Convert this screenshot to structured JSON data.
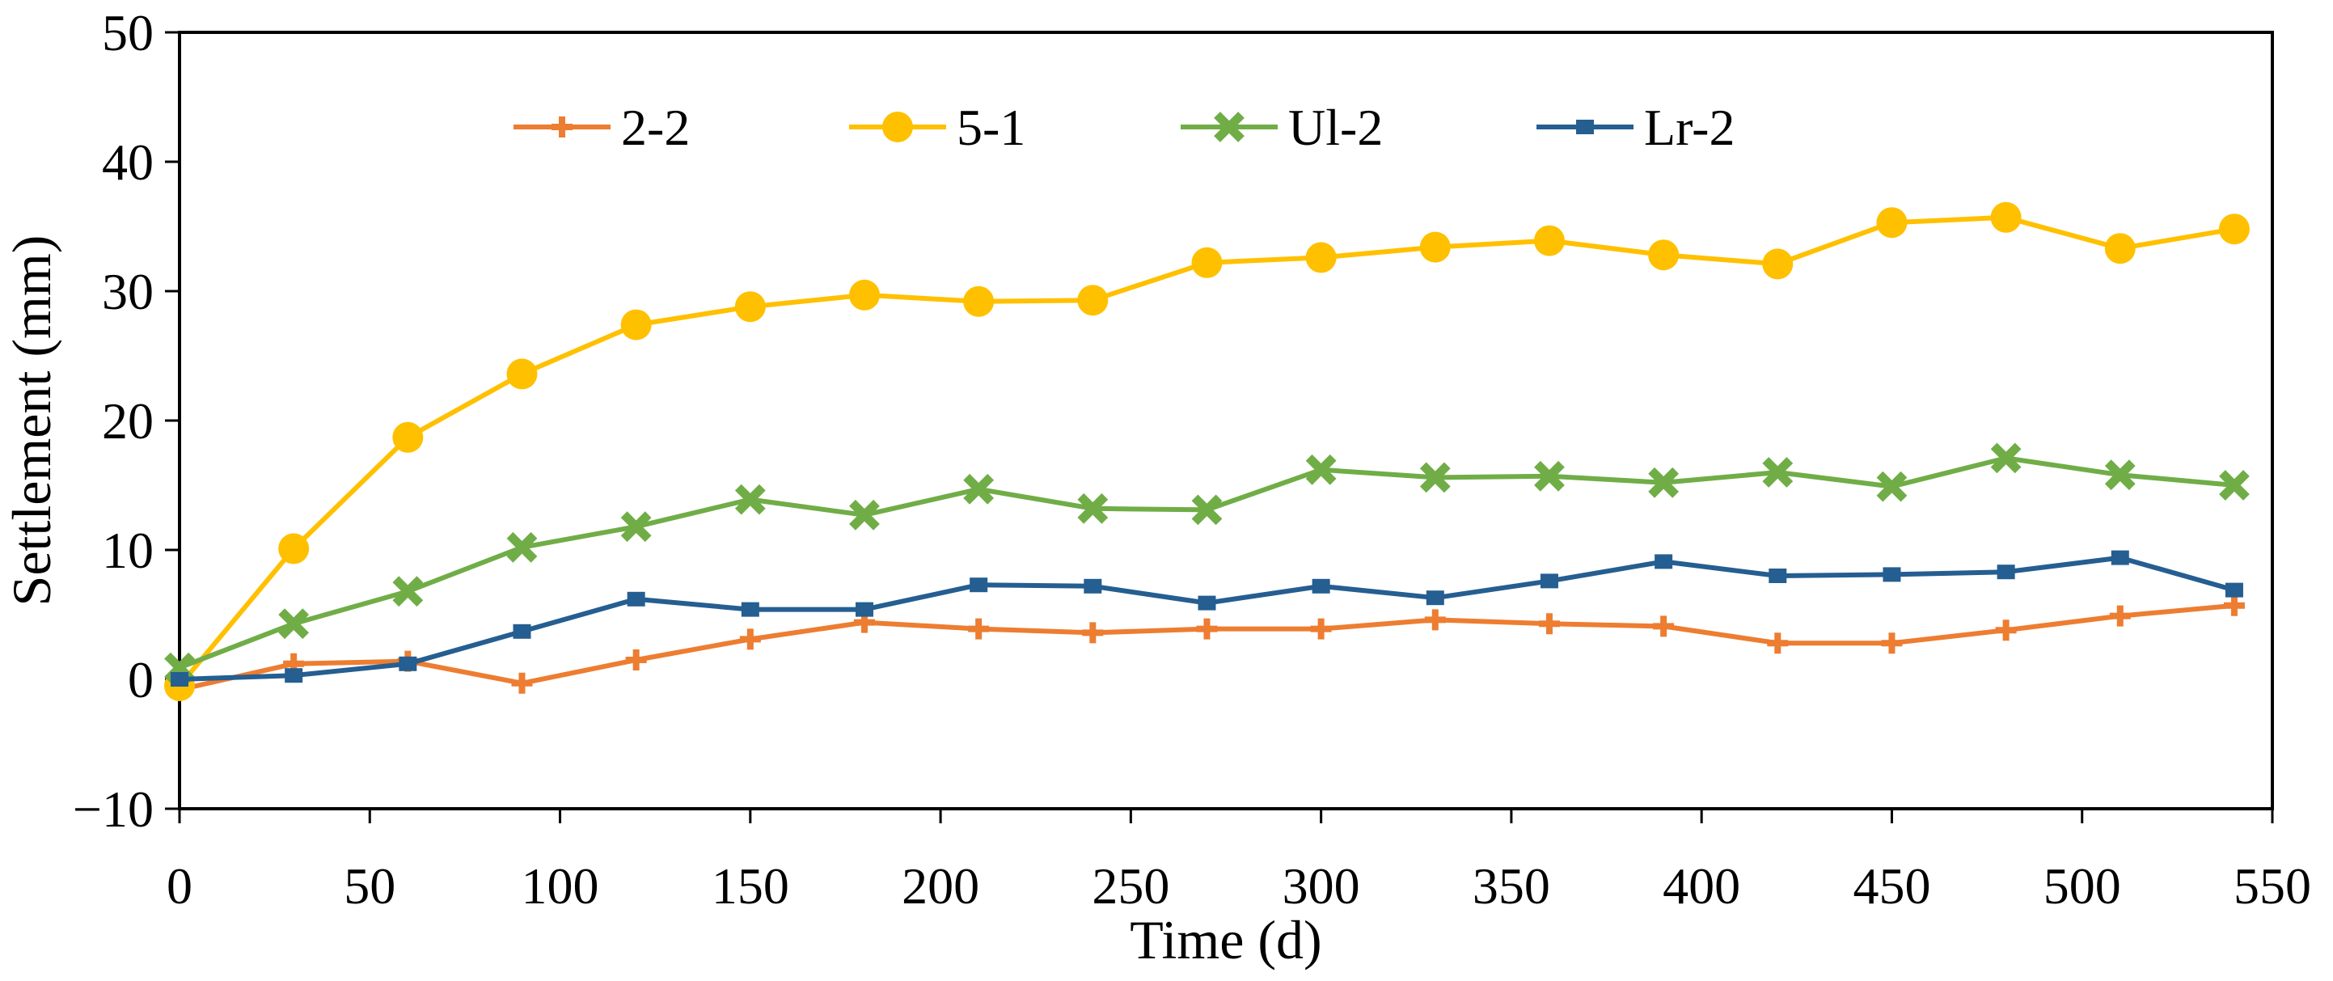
{
  "chart_data": {
    "type": "line",
    "title": "",
    "xlabel": "Time (d)",
    "ylabel": "Settlement (mm)",
    "xlim": [
      0,
      550
    ],
    "ylim": [
      -10,
      50
    ],
    "xticks": [
      0,
      50,
      100,
      150,
      200,
      250,
      300,
      350,
      400,
      450,
      500,
      550
    ],
    "yticks": [
      -10,
      0,
      10,
      20,
      30,
      40,
      50
    ],
    "xtick_labels": [
      "0",
      "50",
      "100",
      "150",
      "200",
      "250",
      "300",
      "350",
      "400",
      "450",
      "500",
      "550"
    ],
    "ytick_labels": [
      "−10",
      "0",
      "10",
      "20",
      "30",
      "40",
      "50"
    ],
    "grid": false,
    "legend_position": "top",
    "x": [
      0,
      30,
      60,
      90,
      120,
      150,
      180,
      210,
      240,
      270,
      300,
      330,
      360,
      390,
      420,
      450,
      480,
      510,
      540
    ],
    "series": [
      {
        "name": "2-2",
        "color": "#ED7D31",
        "marker": "plus",
        "values": [
          -0.8,
          1.2,
          1.4,
          -0.3,
          1.5,
          3.1,
          4.4,
          3.9,
          3.6,
          3.9,
          3.9,
          4.6,
          4.3,
          4.1,
          2.8,
          2.8,
          3.8,
          4.9,
          5.7
        ]
      },
      {
        "name": "5-1",
        "color": "#FFC000",
        "marker": "circle",
        "values": [
          -0.5,
          10.1,
          18.7,
          23.6,
          27.4,
          28.8,
          29.7,
          29.2,
          29.3,
          32.2,
          32.6,
          33.4,
          33.9,
          32.8,
          32.1,
          35.3,
          35.7,
          33.3,
          34.8
        ]
      },
      {
        "name": "Ul-2",
        "color": "#70AD47",
        "marker": "cross",
        "values": [
          0.9,
          4.3,
          6.8,
          10.2,
          11.8,
          13.9,
          12.7,
          14.7,
          13.2,
          13.1,
          16.2,
          15.6,
          15.7,
          15.2,
          16.0,
          14.9,
          17.1,
          15.8,
          15.0
        ]
      },
      {
        "name": "Lr-2",
        "color": "#255E91",
        "marker": "square",
        "values": [
          0.0,
          0.3,
          1.2,
          3.7,
          6.2,
          5.4,
          5.4,
          7.3,
          7.2,
          5.9,
          7.2,
          6.3,
          7.6,
          9.1,
          8.0,
          8.1,
          8.3,
          9.4,
          6.9
        ]
      }
    ]
  }
}
